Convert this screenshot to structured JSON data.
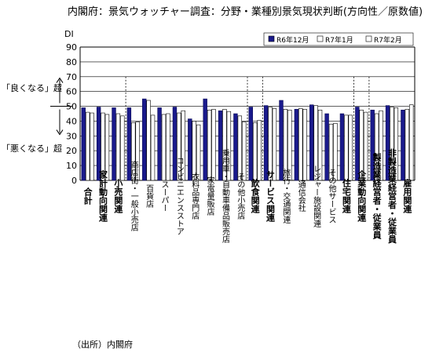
{
  "chart_data": {
    "type": "bar",
    "title": "内閣府：景気ウォッチャー調査：分野・業種別景気現状判断(方向性／原数値)",
    "ylabel": "DI",
    "ylim": [
      0,
      90
    ],
    "yticks": [
      0,
      10,
      20,
      30,
      40,
      50,
      60,
      70,
      80,
      90
    ],
    "grid": true,
    "legend_position": "top-right",
    "reference_line": 50,
    "annotations": {
      "upper": "「良くなる」超",
      "lower": "「悪くなる」超",
      "source": "（出所）内閣府"
    },
    "colors": [
      "#1a1a8c",
      "#ffffff",
      "#ffffff"
    ],
    "categories": [
      {
        "label": "合計",
        "bold": true
      },
      {
        "label": "家計動向関連",
        "bold": true
      },
      {
        "label": "小売関連",
        "bold": true
      },
      {
        "label": "商店街・一般小売店",
        "bold": false
      },
      {
        "label": "百貨店",
        "bold": false
      },
      {
        "label": "スーパー",
        "bold": false
      },
      {
        "label": "コンビニエンスストア",
        "bold": false
      },
      {
        "label": "衣料品専門店",
        "bold": false
      },
      {
        "label": "家電量販店",
        "bold": false
      },
      {
        "label": "乗用車・自動車備品販売店",
        "bold": false
      },
      {
        "label": "その他小売店",
        "bold": false
      },
      {
        "label": "飲食関連",
        "bold": true
      },
      {
        "label": "サービス関連",
        "bold": true
      },
      {
        "label": "旅行・交通関連",
        "bold": false
      },
      {
        "label": "通信会社",
        "bold": false
      },
      {
        "label": "レジャー施設関連",
        "bold": false
      },
      {
        "label": "その他サービス",
        "bold": false
      },
      {
        "label": "住宅関連",
        "bold": true
      },
      {
        "label": "企業動向関連",
        "bold": true
      },
      {
        "label": "製造業経営者・従業員",
        "bold": true
      },
      {
        "label": "非製造業経営者・従業員",
        "bold": true
      },
      {
        "label": "雇用関連",
        "bold": true
      }
    ],
    "separators_after": [
      2,
      10,
      11,
      17,
      18
    ],
    "series": [
      {
        "name": "R6年12月",
        "values": [
          49.0,
          49.5,
          49.0,
          49.0,
          55.0,
          49.0,
          49.5,
          41.5,
          55.0,
          47.0,
          45.0,
          49.5,
          50.5,
          54.0,
          48.0,
          51.0,
          45.0,
          45.0,
          49.5,
          47.5,
          50.5,
          47.5
        ]
      },
      {
        "name": "R7年1月",
        "values": [
          46.0,
          45.5,
          45.0,
          39.0,
          54.0,
          44.5,
          45.5,
          40.0,
          47.5,
          48.0,
          43.5,
          39.0,
          49.5,
          48.0,
          48.5,
          50.5,
          38.0,
          44.0,
          47.5,
          45.0,
          49.5,
          48.0
        ]
      },
      {
        "name": "R7年2月",
        "values": [
          45.5,
          44.5,
          43.5,
          39.5,
          44.0,
          45.0,
          47.0,
          37.5,
          48.0,
          46.5,
          39.5,
          40.5,
          48.5,
          47.5,
          48.0,
          47.5,
          38.5,
          44.0,
          46.0,
          47.0,
          49.0,
          51.0
        ]
      }
    ]
  }
}
